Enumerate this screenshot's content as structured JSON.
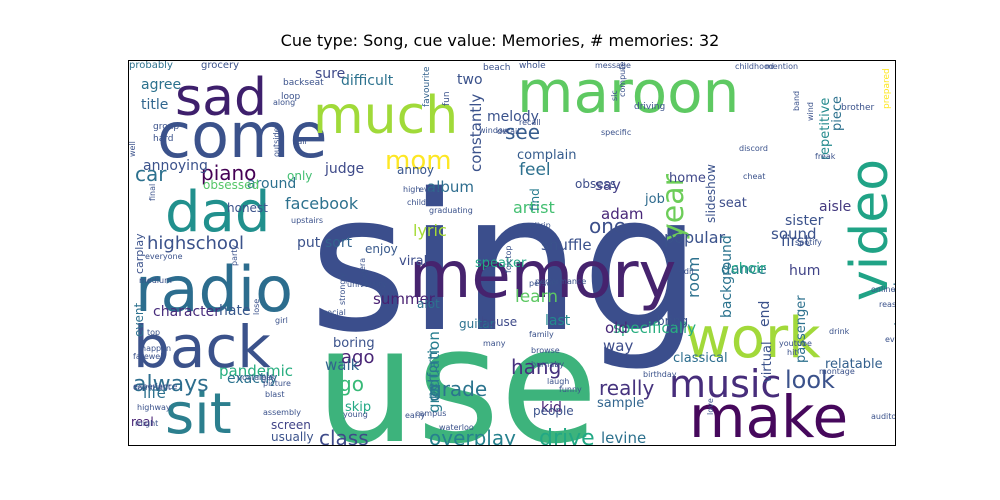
{
  "chart_data": {
    "type": "wordcloud",
    "title": "Cue type: Song, cue value: Memories, # memories: 32",
    "colormap": "viridis",
    "words": [
      {
        "text": "sing",
        "weight": 1.0
      },
      {
        "text": "use",
        "weight": 0.96
      },
      {
        "text": "maroon",
        "weight": 0.5
      },
      {
        "text": "memory",
        "weight": 0.48
      },
      {
        "text": "radio",
        "weight": 0.46
      },
      {
        "text": "come",
        "weight": 0.44
      },
      {
        "text": "make",
        "weight": 0.44
      },
      {
        "text": "work",
        "weight": 0.43
      },
      {
        "text": "video",
        "weight": 0.42
      },
      {
        "text": "back",
        "weight": 0.42
      },
      {
        "text": "dad",
        "weight": 0.38
      },
      {
        "text": "much",
        "weight": 0.36
      },
      {
        "text": "sit",
        "weight": 0.36
      },
      {
        "text": "sad",
        "weight": 0.32
      },
      {
        "text": "music",
        "weight": 0.26
      },
      {
        "text": "year",
        "weight": 0.24
      },
      {
        "text": "mom",
        "weight": 0.22
      },
      {
        "text": "look",
        "weight": 0.18
      },
      {
        "text": "always",
        "weight": 0.18
      },
      {
        "text": "drive",
        "weight": 0.17
      },
      {
        "text": "class",
        "weight": 0.16
      },
      {
        "text": "grade",
        "weight": 0.14
      },
      {
        "text": "really",
        "weight": 0.14
      },
      {
        "text": "piano",
        "weight": 0.14
      },
      {
        "text": "overplay",
        "weight": 0.14
      },
      {
        "text": "hang",
        "weight": 0.13
      },
      {
        "text": "highschool",
        "weight": 0.13
      },
      {
        "text": "car",
        "weight": 0.13
      },
      {
        "text": "see",
        "weight": 0.13
      },
      {
        "text": "one",
        "weight": 0.13
      },
      {
        "text": "go",
        "weight": 0.13
      },
      {
        "text": "ago",
        "weight": 0.12
      },
      {
        "text": "feel",
        "weight": 0.12
      },
      {
        "text": "learn",
        "weight": 0.12
      },
      {
        "text": "facebook",
        "weight": 0.11
      },
      {
        "text": "lyric",
        "weight": 0.11
      },
      {
        "text": "artist",
        "weight": 0.11
      },
      {
        "text": "specifically",
        "weight": 0.11
      },
      {
        "text": "pandemic",
        "weight": 0.11
      },
      {
        "text": "graduation",
        "weight": 0.11
      },
      {
        "text": "adam",
        "weight": 0.1
      },
      {
        "text": "popular",
        "weight": 0.1
      },
      {
        "text": "dance",
        "weight": 0.1
      },
      {
        "text": "levine",
        "weight": 0.1
      },
      {
        "text": "old",
        "weight": 0.1
      },
      {
        "text": "way",
        "weight": 0.1
      },
      {
        "text": "life",
        "weight": 0.1
      },
      {
        "text": "sure",
        "weight": 0.09
      },
      {
        "text": "room",
        "weight": 0.09
      },
      {
        "text": "together",
        "weight": 0.09
      },
      {
        "text": "walk",
        "weight": 0.09
      },
      {
        "text": "annoying",
        "weight": 0.09
      },
      {
        "text": "first",
        "weight": 0.09
      },
      {
        "text": "summer",
        "weight": 0.08
      },
      {
        "text": "character",
        "weight": 0.08
      },
      {
        "text": "exactly",
        "weight": 0.08
      },
      {
        "text": "hate",
        "weight": 0.08
      },
      {
        "text": "say",
        "weight": 0.08
      },
      {
        "text": "album",
        "weight": 0.08
      },
      {
        "text": "constantly",
        "weight": 0.08
      },
      {
        "text": "fictional",
        "weight": 0.08
      },
      {
        "text": "sound",
        "weight": 0.08
      },
      {
        "text": "kid",
        "weight": 0.08
      },
      {
        "text": "last",
        "weight": 0.08
      },
      {
        "text": "agree",
        "weight": 0.07
      },
      {
        "text": "title",
        "weight": 0.07
      },
      {
        "text": "difficult",
        "weight": 0.07
      },
      {
        "text": "two",
        "weight": 0.07
      },
      {
        "text": "melody",
        "weight": 0.07
      },
      {
        "text": "around",
        "weight": 0.07
      },
      {
        "text": "judge",
        "weight": 0.07
      },
      {
        "text": "complain",
        "weight": 0.07
      },
      {
        "text": "shuffle",
        "weight": 0.07
      },
      {
        "text": "speaker",
        "weight": 0.07
      },
      {
        "text": "job",
        "weight": 0.07
      },
      {
        "text": "seat",
        "weight": 0.07
      },
      {
        "text": "home",
        "weight": 0.07
      },
      {
        "text": "sister",
        "weight": 0.07
      },
      {
        "text": "aisle",
        "weight": 0.07
      },
      {
        "text": "choir",
        "weight": 0.07
      },
      {
        "text": "hum",
        "weight": 0.07
      },
      {
        "text": "background",
        "weight": 0.07
      },
      {
        "text": "repetitive",
        "weight": 0.07
      },
      {
        "text": "piece",
        "weight": 0.07
      },
      {
        "text": "slideshow",
        "weight": 0.07
      },
      {
        "text": "put",
        "weight": 0.07
      },
      {
        "text": "sort",
        "weight": 0.07
      },
      {
        "text": "enjoy",
        "weight": 0.07
      },
      {
        "text": "guitar",
        "weight": 0.07
      },
      {
        "text": "viral",
        "weight": 0.07
      },
      {
        "text": "boring",
        "weight": 0.07
      },
      {
        "text": "skip",
        "weight": 0.07
      },
      {
        "text": "perform",
        "weight": 0.07
      },
      {
        "text": "house",
        "weight": 0.07
      },
      {
        "text": "bring",
        "weight": 0.07
      },
      {
        "text": "alot",
        "weight": 0.07
      },
      {
        "text": "end",
        "weight": 0.07
      },
      {
        "text": "classical",
        "weight": 0.07
      },
      {
        "text": "passenger",
        "weight": 0.07
      },
      {
        "text": "virtual",
        "weight": 0.07
      },
      {
        "text": "relatable",
        "weight": 0.07
      },
      {
        "text": "people",
        "weight": 0.07
      },
      {
        "text": "sample",
        "weight": 0.07
      },
      {
        "text": "screen",
        "weight": 0.07
      },
      {
        "text": "usually",
        "weight": 0.07
      },
      {
        "text": "real",
        "weight": 0.07
      },
      {
        "text": "obsessed",
        "weight": 0.06
      },
      {
        "text": "honest",
        "weight": 0.06
      },
      {
        "text": "only",
        "weight": 0.06
      },
      {
        "text": "annoy",
        "weight": 0.06
      },
      {
        "text": "obsess",
        "weight": 0.06
      },
      {
        "text": "find",
        "weight": 0.06
      },
      {
        "text": "event",
        "weight": 0.06
      },
      {
        "text": "carplay",
        "weight": 0.06
      },
      {
        "text": "probably",
        "weight": 0.05
      },
      {
        "text": "grocery",
        "weight": 0.05
      },
      {
        "text": "backseat",
        "weight": 0.05
      },
      {
        "text": "loop",
        "weight": 0.05
      },
      {
        "text": "favourite",
        "weight": 0.05
      },
      {
        "text": "fun",
        "weight": 0.05
      },
      {
        "text": "beach",
        "weight": 0.05
      },
      {
        "text": "whole",
        "weight": 0.05
      },
      {
        "text": "message",
        "weight": 0.05
      },
      {
        "text": "childhood",
        "weight": 0.05
      },
      {
        "text": "mention",
        "weight": 0.05
      },
      {
        "text": "band",
        "weight": 0.05
      },
      {
        "text": "brother",
        "weight": 0.05
      },
      {
        "text": "prepared",
        "weight": 0.05
      },
      {
        "text": "wind",
        "weight": 0.05
      },
      {
        "text": "freak",
        "weight": 0.05
      },
      {
        "text": "discord",
        "weight": 0.05
      },
      {
        "text": "cheat",
        "weight": 0.05
      },
      {
        "text": "driving",
        "weight": 0.05
      },
      {
        "text": "slc",
        "weight": 0.05
      },
      {
        "text": "computer",
        "weight": 0.05
      },
      {
        "text": "specific",
        "weight": 0.05
      },
      {
        "text": "window",
        "weight": 0.05
      },
      {
        "text": "recall",
        "weight": 0.05
      },
      {
        "text": "detail",
        "weight": 0.05
      },
      {
        "text": "group",
        "weight": 0.05
      },
      {
        "text": "hard",
        "weight": 0.05
      },
      {
        "text": "along",
        "weight": 0.05
      },
      {
        "text": "call",
        "weight": 0.05
      },
      {
        "text": "well",
        "weight": 0.05
      },
      {
        "text": "experience",
        "weight": 0.05
      },
      {
        "text": "final",
        "weight": 0.05
      },
      {
        "text": "outside",
        "weight": 0.05
      },
      {
        "text": "upstairs",
        "weight": 0.05
      },
      {
        "text": "high",
        "weight": 0.05
      },
      {
        "text": "every",
        "weight": 0.05
      },
      {
        "text": "child",
        "weight": 0.05
      },
      {
        "text": "graduating",
        "weight": 0.05
      },
      {
        "text": "everyday",
        "weight": 0.05
      },
      {
        "text": "spotify",
        "weight": 0.05
      },
      {
        "text": "foictop",
        "weight": 0.05
      },
      {
        "text": "roadtrip",
        "weight": 0.05
      },
      {
        "text": "post",
        "weight": 0.05
      },
      {
        "text": "era",
        "weight": 0.05
      },
      {
        "text": "edit",
        "weight": 0.05
      },
      {
        "text": "performance",
        "weight": 0.05
      },
      {
        "text": "person",
        "weight": 0.05
      },
      {
        "text": "online",
        "weight": 0.05
      },
      {
        "text": "reason",
        "weight": 0.05
      },
      {
        "text": "everyone",
        "weight": 0.05
      },
      {
        "text": "medium",
        "weight": 0.05
      },
      {
        "text": "party",
        "weight": 0.05
      },
      {
        "text": "university",
        "weight": 0.05
      },
      {
        "text": "social",
        "weight": 0.05
      },
      {
        "text": "top",
        "weight": 0.05
      },
      {
        "text": "girl",
        "weight": 0.05
      },
      {
        "text": "lose",
        "weight": 0.05
      },
      {
        "text": "strongly",
        "weight": 0.05
      },
      {
        "text": "family",
        "weight": 0.05
      },
      {
        "text": "browse",
        "weight": 0.05
      },
      {
        "text": "burnaby",
        "weight": 0.05
      },
      {
        "text": "many",
        "weight": 0.05
      },
      {
        "text": "drink",
        "weight": 0.05
      },
      {
        "text": "youtube",
        "weight": 0.05
      },
      {
        "text": "hit",
        "weight": 0.05
      },
      {
        "text": "happen",
        "weight": 0.05
      },
      {
        "text": "farewell",
        "weight": 0.05
      },
      {
        "text": "nostalgic",
        "weight": 0.05
      },
      {
        "text": "leak",
        "weight": 0.05
      },
      {
        "text": "laugh",
        "weight": 0.05
      },
      {
        "text": "funny",
        "weight": 0.05
      },
      {
        "text": "montage",
        "weight": 0.05
      },
      {
        "text": "love",
        "weight": 0.05
      },
      {
        "text": "birthday",
        "weight": 0.05
      },
      {
        "text": "comment",
        "weight": 0.05
      },
      {
        "text": "highway",
        "weight": 0.05
      },
      {
        "text": "might",
        "weight": 0.05
      },
      {
        "text": "picture",
        "weight": 0.05
      },
      {
        "text": "blast",
        "weight": 0.05
      },
      {
        "text": "assembly",
        "weight": 0.05
      },
      {
        "text": "young",
        "weight": 0.05
      },
      {
        "text": "campus",
        "weight": 0.05
      },
      {
        "text": "early",
        "weight": 0.05
      },
      {
        "text": "waterloo",
        "weight": 0.05
      },
      {
        "text": "auditorium",
        "weight": 0.05
      },
      {
        "text": "wife",
        "weight": 0.05
      }
    ]
  }
}
